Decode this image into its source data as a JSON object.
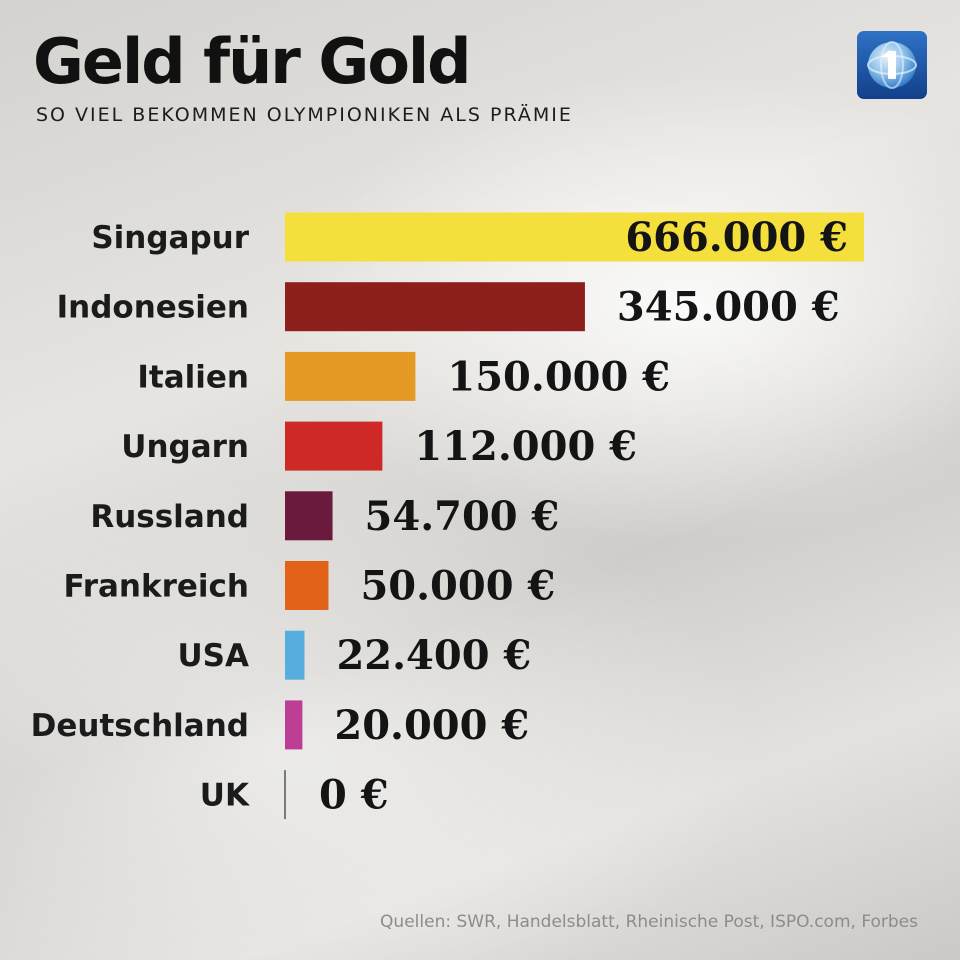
{
  "header": {
    "title": "Geld für Gold",
    "subtitle": "SO VIEL BEKOMMEN OLYMPIONIKEN ALS PRÄMIE"
  },
  "logo": {
    "icon": "tagesschau-logo-icon",
    "accent": "#1a4fa3"
  },
  "chart_data": {
    "type": "bar",
    "orientation": "horizontal",
    "categories": [
      "Singapur",
      "Indonesien",
      "Italien",
      "Ungarn",
      "Russland",
      "Frankreich",
      "USA",
      "Deutschland",
      "UK"
    ],
    "values": [
      666000,
      345000,
      150000,
      112000,
      54700,
      50000,
      22400,
      20000,
      0
    ],
    "value_labels": [
      "666.000 €",
      "345.000 €",
      "150.000 €",
      "112.000 €",
      "54.700 €",
      "50.000 €",
      "22.400 €",
      "20.000 €",
      "0 €"
    ],
    "colors": [
      "#f4df3c",
      "#8d1f1c",
      "#e49a25",
      "#cf2927",
      "#6a1a3c",
      "#e2621a",
      "#57aede",
      "#bc3f95",
      "#555555"
    ],
    "unit": "€",
    "title": "Geld für Gold",
    "subtitle": "SO VIEL BEKOMMEN OLYMPIONIKEN ALS PRÄMIE",
    "xlabel": "",
    "ylabel": "",
    "xlim": [
      0,
      666000
    ],
    "grid": false,
    "legend": "none"
  },
  "footer": {
    "source": "Quellen: SWR, Handelsblatt, Rheinische Post, ISPO.com, Forbes"
  }
}
